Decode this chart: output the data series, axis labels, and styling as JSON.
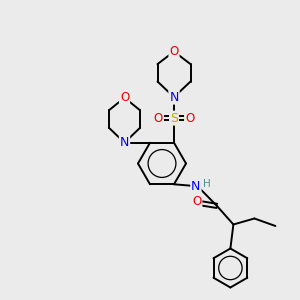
{
  "background_color": "#ebebeb",
  "atom_colors": {
    "C": "#000000",
    "N": "#0000ee",
    "O": "#ee0000",
    "S": "#bbaa00",
    "H": "#4a9090"
  },
  "bond_color": "#000000",
  "figsize": [
    3.0,
    3.0
  ],
  "dpi": 100
}
